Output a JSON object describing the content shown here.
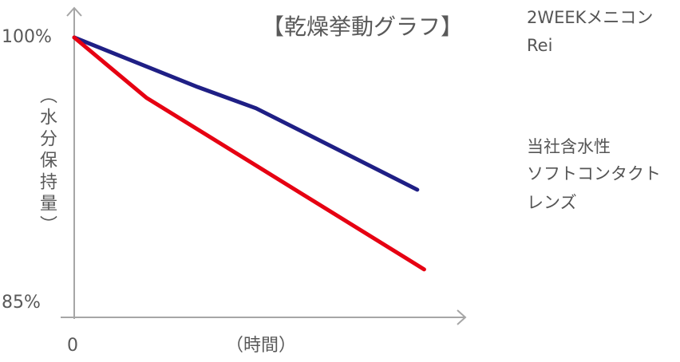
{
  "chart_data": {
    "type": "line",
    "title": "【乾燥挙動グラフ】",
    "ylabel": "（水分保持量）",
    "xlabel": "（時間）",
    "ytick_labels": [
      "100%",
      "85%"
    ],
    "xtick_labels": [
      "0"
    ],
    "ylim": [
      85,
      100
    ],
    "xlim": [
      0,
      114
    ],
    "grid": false,
    "legend_placement": "right",
    "series": [
      {
        "name": "2WEEKメニコン Rei",
        "name_lines": [
          "2WEEKメニコン",
          "Rei"
        ],
        "color": "#1f1f85",
        "x": [
          0,
          36,
          53,
          100
        ],
        "y": [
          100,
          97.2,
          96.0,
          91.4
        ]
      },
      {
        "name": "当社含水性ソフトコンタクトレンズ",
        "name_lines": [
          "当社含水性",
          "ソフトコンタクト",
          "レンズ"
        ],
        "color": "#e60012",
        "x": [
          0,
          21,
          102
        ],
        "y": [
          100,
          96.6,
          86.9
        ]
      }
    ],
    "axis_color": "#a6a6a6"
  }
}
